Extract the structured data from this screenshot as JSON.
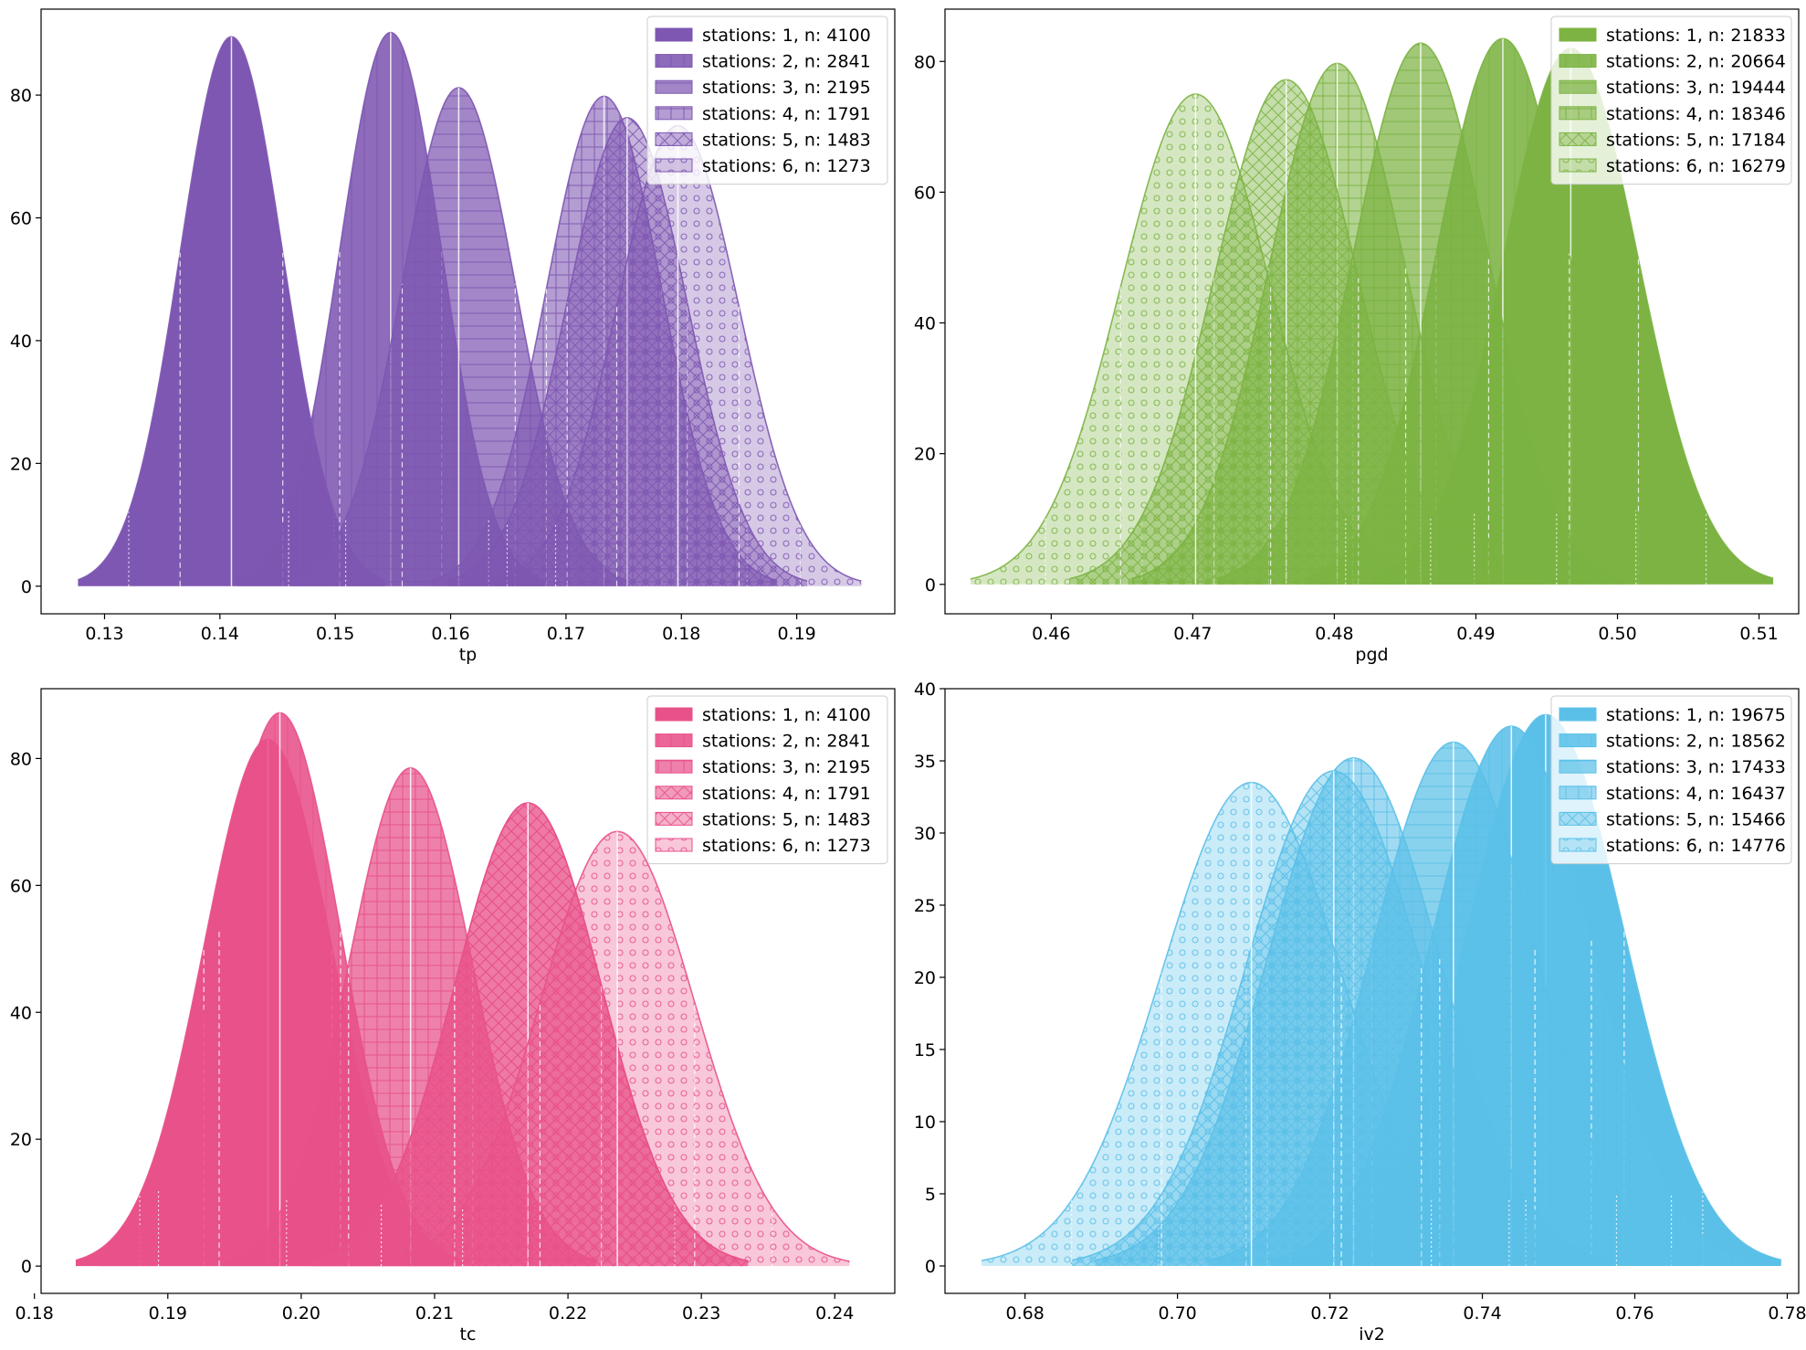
{
  "chart_data": [
    {
      "type": "area",
      "xlabel": "tp",
      "ylabel": "",
      "xlim": [
        0.1245,
        0.1985
      ],
      "ylim": [
        -4.5,
        94
      ],
      "xticks": [
        0.13,
        0.14,
        0.15,
        0.16,
        0.17,
        0.18,
        0.19
      ],
      "xtick_labels": [
        "0.13",
        "0.14",
        "0.15",
        "0.16",
        "0.17",
        "0.18",
        "0.19"
      ],
      "yticks": [
        0,
        20,
        40,
        60,
        80
      ],
      "ytick_labels": [
        "0",
        "20",
        "40",
        "60",
        "80"
      ],
      "grid": false,
      "legend_position": "top-right",
      "color": "#7e57b2",
      "series": [
        {
          "name": "stations: 1, n: 4100",
          "mean": 0.141,
          "sd": 0.00445,
          "peak": 89.5,
          "xmin": 0.1277,
          "xmax": 0.1543,
          "fill_opacity": 1.0,
          "hatch": "none"
        },
        {
          "name": "stations: 2, n: 2841",
          "mean": 0.1548,
          "sd": 0.00442,
          "peak": 90.2,
          "xmin": 0.1415,
          "xmax": 0.1681,
          "fill_opacity": 0.88,
          "hatch": "vertical"
        },
        {
          "name": "stations: 3, n: 2195",
          "mean": 0.1607,
          "sd": 0.0049,
          "peak": 81.2,
          "xmin": 0.146,
          "xmax": 0.1754,
          "fill_opacity": 0.72,
          "hatch": "horizontal"
        },
        {
          "name": "stations: 4, n: 1791",
          "mean": 0.1733,
          "sd": 0.005,
          "peak": 79.8,
          "xmin": 0.1583,
          "xmax": 0.1883,
          "fill_opacity": 0.58,
          "hatch": "grid"
        },
        {
          "name": "stations: 5, n: 1483",
          "mean": 0.1753,
          "sd": 0.0052,
          "peak": 76.3,
          "xmin": 0.1597,
          "xmax": 0.1909,
          "fill_opacity": 0.45,
          "hatch": "cross"
        },
        {
          "name": "stations: 6, n: 1273",
          "mean": 0.1797,
          "sd": 0.0053,
          "peak": 75.0,
          "xmin": 0.1638,
          "xmax": 0.1956,
          "fill_opacity": 0.32,
          "hatch": "circles"
        }
      ]
    },
    {
      "type": "area",
      "xlabel": "pgd",
      "ylabel": "",
      "xlim": [
        0.5425,
        0.5128
      ],
      "ylim": [
        -4.5,
        88
      ],
      "xticks": [
        0.46,
        0.47,
        0.48,
        0.49,
        0.5,
        0.51
      ],
      "xtick_labels": [
        "0.46",
        "0.47",
        "0.48",
        "0.49",
        "0.50",
        "0.51"
      ],
      "yticks": [
        0,
        20,
        40,
        60,
        80
      ],
      "ytick_labels": [
        "0",
        "20",
        "40",
        "60",
        "80"
      ],
      "grid": false,
      "legend_position": "top-right",
      "color": "#7cb342",
      "series": [
        {
          "name": "stations: 1, n: 21833",
          "mean": 0.4967,
          "sd": 0.00478,
          "peak": 82.0,
          "xmin": 0.4824,
          "xmax": 0.511,
          "fill_opacity": 1.0,
          "hatch": "none"
        },
        {
          "name": "stations: 2, n: 20664",
          "mean": 0.4919,
          "sd": 0.0047,
          "peak": 83.5,
          "xmin": 0.4778,
          "xmax": 0.506,
          "fill_opacity": 0.88,
          "hatch": "vertical"
        },
        {
          "name": "stations: 3, n: 19444",
          "mean": 0.4861,
          "sd": 0.0048,
          "peak": 82.8,
          "xmin": 0.4717,
          "xmax": 0.5005,
          "fill_opacity": 0.72,
          "hatch": "horizontal"
        },
        {
          "name": "stations: 4, n: 18346",
          "mean": 0.4802,
          "sd": 0.00484,
          "peak": 79.7,
          "xmin": 0.4657,
          "xmax": 0.4947,
          "fill_opacity": 0.58,
          "hatch": "grid"
        },
        {
          "name": "stations: 5, n: 17184",
          "mean": 0.4766,
          "sd": 0.0051,
          "peak": 77.2,
          "xmin": 0.4613,
          "xmax": 0.4919,
          "fill_opacity": 0.45,
          "hatch": "cross"
        },
        {
          "name": "stations: 6, n: 16279",
          "mean": 0.4702,
          "sd": 0.0053,
          "peak": 75.0,
          "xmin": 0.4543,
          "xmax": 0.4861,
          "fill_opacity": 0.32,
          "hatch": "circles"
        }
      ]
    },
    {
      "type": "area",
      "xlabel": "tc",
      "ylabel": "",
      "xlim": [
        0.1805,
        0.2445
      ],
      "ylim": [
        -4.3,
        91
      ],
      "xticks": [
        0.18,
        0.19,
        0.2,
        0.21,
        0.22,
        0.23,
        0.24
      ],
      "xtick_labels": [
        "0.18",
        "0.19",
        "0.20",
        "0.21",
        "0.22",
        "0.23",
        "0.24"
      ],
      "yticks": [
        0,
        20,
        40,
        60,
        80
      ],
      "ytick_labels": [
        "0",
        "20",
        "40",
        "60",
        "80"
      ],
      "grid": false,
      "legend_position": "top-right",
      "color": "#e8518a",
      "series": [
        {
          "name": "stations: 1, n: 4100",
          "mean": 0.1975,
          "sd": 0.0048,
          "peak": 83.0,
          "xmin": 0.1831,
          "xmax": 0.2119,
          "fill_opacity": 1.0,
          "hatch": "none"
        },
        {
          "name": "stations: 2, n: 2841",
          "mean": 0.1984,
          "sd": 0.00455,
          "peak": 87.2,
          "xmin": 0.1848,
          "xmax": 0.212,
          "fill_opacity": 0.88,
          "hatch": "vertical"
        },
        {
          "name": "stations: 3, n: 2195",
          "mean": 0.2082,
          "sd": 0.00465,
          "peak": 78.5,
          "xmin": 0.1943,
          "xmax": 0.2221,
          "fill_opacity": 0.72,
          "hatch": "grid"
        },
        {
          "name": "stations: 4, n: 1791",
          "mean": 0.217,
          "sd": 0.0055,
          "peak": 73.0,
          "xmin": 0.2005,
          "xmax": 0.2335,
          "fill_opacity": 0.58,
          "hatch": "cross"
        },
        {
          "name": "stations: 5, n: 1483",
          "mean": 0.217,
          "sd": 0.0055,
          "peak": 73.0,
          "xmin": 0.2005,
          "xmax": 0.2335,
          "fill_opacity": 0.45,
          "hatch": "cross"
        },
        {
          "name": "stations: 6, n: 1273",
          "mean": 0.2237,
          "sd": 0.0058,
          "peak": 68.5,
          "xmin": 0.2063,
          "xmax": 0.2411,
          "fill_opacity": 0.32,
          "hatch": "circles"
        }
      ]
    },
    {
      "type": "area",
      "xlabel": "iv2",
      "ylabel": "",
      "xlim": [
        0.6695,
        0.7815
      ],
      "ylim": [
        -1.9,
        40
      ],
      "xticks": [
        0.68,
        0.7,
        0.72,
        0.74,
        0.76,
        0.78
      ],
      "xtick_labels": [
        "0.68",
        "0.70",
        "0.72",
        "0.74",
        "0.76",
        "0.78"
      ],
      "yticks": [
        0,
        5,
        10,
        15,
        20,
        25,
        30,
        35,
        40
      ],
      "ytick_labels": [
        "0",
        "5",
        "10",
        "15",
        "20",
        "25",
        "30",
        "35",
        "40"
      ],
      "grid": false,
      "legend_position": "top-right",
      "color": "#5bc0e8",
      "series": [
        {
          "name": "stations: 1, n: 19675",
          "mean": 0.7483,
          "sd": 0.0103,
          "peak": 38.2,
          "xmin": 0.7174,
          "xmax": 0.7792,
          "fill_opacity": 1.0,
          "hatch": "none"
        },
        {
          "name": "stations: 2, n: 18562",
          "mean": 0.7438,
          "sd": 0.0105,
          "peak": 37.4,
          "xmin": 0.7123,
          "xmax": 0.7753,
          "fill_opacity": 0.88,
          "hatch": "vertical"
        },
        {
          "name": "stations: 3, n: 17433",
          "mean": 0.7362,
          "sd": 0.0107,
          "peak": 36.3,
          "xmin": 0.7041,
          "xmax": 0.7683,
          "fill_opacity": 0.72,
          "hatch": "horizontal"
        },
        {
          "name": "stations: 4, n: 16437",
          "mean": 0.7231,
          "sd": 0.0113,
          "peak": 35.2,
          "xmin": 0.6892,
          "xmax": 0.757,
          "fill_opacity": 0.58,
          "hatch": "grid"
        },
        {
          "name": "stations: 5, n: 15466",
          "mean": 0.7205,
          "sd": 0.0115,
          "peak": 34.3,
          "xmin": 0.686,
          "xmax": 0.755,
          "fill_opacity": 0.45,
          "hatch": "cross"
        },
        {
          "name": "stations: 6, n: 14776",
          "mean": 0.7097,
          "sd": 0.0118,
          "peak": 33.5,
          "xmin": 0.6743,
          "xmax": 0.7451,
          "fill_opacity": 0.32,
          "hatch": "circles"
        }
      ]
    }
  ]
}
